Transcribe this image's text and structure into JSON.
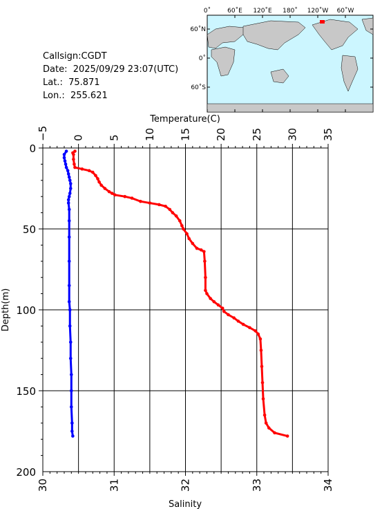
{
  "info": {
    "callsign": "Callsign:CGDT",
    "date": "Date:  2025/09/29 23:07(UTC)",
    "lat": "Lat.:  75.871",
    "lon": "Lon.:  255.621"
  },
  "map": {
    "top_labels": [
      "0˚",
      "60˚E",
      "120˚E",
      "180˚",
      "120˚W",
      "60˚W"
    ],
    "left_labels": [
      "60˚N",
      "0˚",
      "60˚S"
    ],
    "colors": {
      "ocean": "#ccf6ff",
      "land": "#c8c8c8",
      "marker": "#ff0000"
    }
  },
  "chart_data": {
    "type": "line",
    "ylabel": "Depth(m)",
    "ylim": [
      200,
      0
    ],
    "yticks": [
      "0",
      "50",
      "100",
      "150",
      "200"
    ],
    "grid": true,
    "axes": {
      "temperature": {
        "label": "Temperature(C)",
        "position": "top",
        "range": [
          -5,
          35
        ],
        "ticks": [
          "−5",
          "0",
          "5",
          "10",
          "15",
          "20",
          "25",
          "30",
          "35"
        ]
      },
      "salinity": {
        "label": "Salinity",
        "position": "bottom",
        "range": [
          30,
          34
        ],
        "ticks": [
          "30",
          "31",
          "32",
          "33",
          "34"
        ]
      }
    },
    "series": [
      {
        "axis": "temperature",
        "color": "#ff0000",
        "points": [
          [
            -0.5,
            2
          ],
          [
            -0.8,
            3
          ],
          [
            -0.7,
            4
          ],
          [
            -0.7,
            7
          ],
          [
            -0.6,
            10
          ],
          [
            -0.5,
            12
          ],
          [
            0.5,
            13
          ],
          [
            1.5,
            14
          ],
          [
            2.0,
            15
          ],
          [
            2.4,
            17
          ],
          [
            2.7,
            19
          ],
          [
            2.9,
            21
          ],
          [
            3.2,
            23
          ],
          [
            3.7,
            25
          ],
          [
            4.3,
            27
          ],
          [
            4.7,
            28
          ],
          [
            5.1,
            29
          ],
          [
            6.5,
            30
          ],
          [
            7.5,
            31
          ],
          [
            8.7,
            33
          ],
          [
            10.0,
            34
          ],
          [
            11.3,
            35
          ],
          [
            12.2,
            36
          ],
          [
            12.8,
            38
          ],
          [
            13.2,
            40
          ],
          [
            13.7,
            42
          ],
          [
            14.2,
            45
          ],
          [
            14.5,
            48
          ],
          [
            14.7,
            50
          ],
          [
            15.2,
            53
          ],
          [
            15.5,
            56
          ],
          [
            16.0,
            59
          ],
          [
            16.6,
            62
          ],
          [
            17.2,
            63
          ],
          [
            17.6,
            64
          ],
          [
            17.7,
            70
          ],
          [
            17.8,
            80
          ],
          [
            17.8,
            88
          ],
          [
            18.0,
            90
          ],
          [
            18.5,
            93
          ],
          [
            19.0,
            95
          ],
          [
            19.6,
            97
          ],
          [
            20.2,
            99
          ],
          [
            20.4,
            101
          ],
          [
            21.0,
            103
          ],
          [
            21.8,
            105
          ],
          [
            22.4,
            107
          ],
          [
            23.1,
            109
          ],
          [
            24.0,
            111
          ],
          [
            24.8,
            113
          ],
          [
            25.2,
            115
          ],
          [
            25.5,
            118
          ],
          [
            25.6,
            125
          ],
          [
            25.7,
            135
          ],
          [
            25.8,
            145
          ],
          [
            25.9,
            155
          ],
          [
            26.1,
            165
          ],
          [
            26.3,
            170
          ],
          [
            26.7,
            173
          ],
          [
            27.5,
            176
          ],
          [
            29.3,
            178
          ]
        ]
      },
      {
        "axis": "salinity",
        "color": "#0000ff",
        "points": [
          [
            30.33,
            2
          ],
          [
            30.3,
            4
          ],
          [
            30.3,
            6
          ],
          [
            30.31,
            8
          ],
          [
            30.32,
            10
          ],
          [
            30.33,
            12
          ],
          [
            30.35,
            14
          ],
          [
            30.36,
            16
          ],
          [
            30.37,
            18
          ],
          [
            30.38,
            20
          ],
          [
            30.39,
            22
          ],
          [
            30.39,
            25
          ],
          [
            30.38,
            28
          ],
          [
            30.37,
            30
          ],
          [
            30.36,
            32
          ],
          [
            30.36,
            34
          ],
          [
            30.37,
            38
          ],
          [
            30.37,
            45
          ],
          [
            30.37,
            55
          ],
          [
            30.37,
            70
          ],
          [
            30.37,
            85
          ],
          [
            30.37,
            95
          ],
          [
            30.38,
            100
          ],
          [
            30.38,
            110
          ],
          [
            30.39,
            120
          ],
          [
            30.39,
            130
          ],
          [
            30.4,
            140
          ],
          [
            30.4,
            150
          ],
          [
            30.4,
            160
          ],
          [
            30.41,
            170
          ],
          [
            30.41,
            175
          ],
          [
            30.42,
            178
          ]
        ]
      }
    ]
  }
}
